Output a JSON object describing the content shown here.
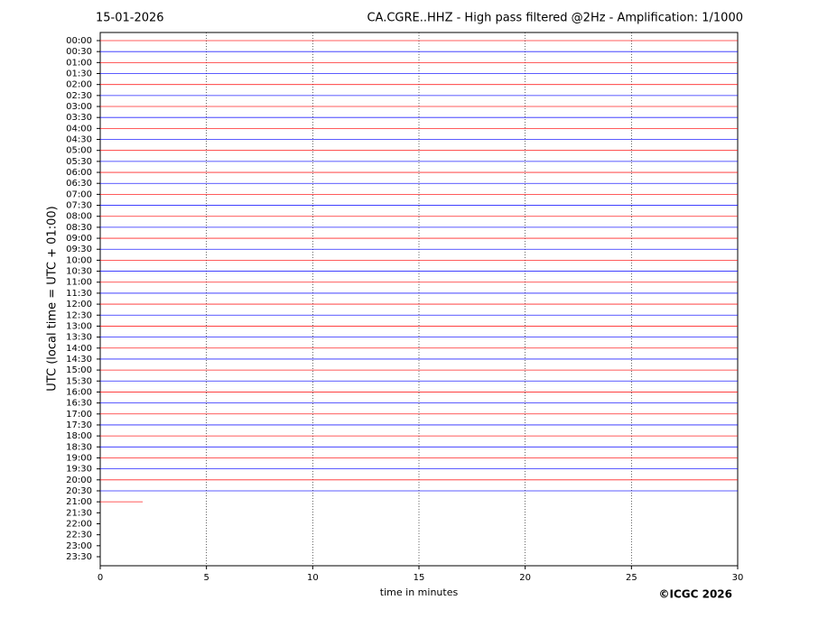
{
  "chart_data": {
    "type": "helicorder",
    "title_left": "15-01-2026",
    "title": "CA.CGRE..HHZ - High pass filtered @2Hz - Amplification: 1/1000",
    "y_label": "UTC (local time = UTC + 01:00)",
    "x_label": "time in minutes",
    "copyright": "©ICGC 2026",
    "categories": [
      "00:00",
      "00:30",
      "01:00",
      "01:30",
      "02:00",
      "02:30",
      "03:00",
      "03:30",
      "04:00",
      "04:30",
      "05:00",
      "05:30",
      "06:00",
      "06:30",
      "07:00",
      "07:30",
      "08:00",
      "08:30",
      "09:00",
      "09:30",
      "10:00",
      "10:30",
      "11:00",
      "11:30",
      "12:00",
      "12:30",
      "13:00",
      "13:30",
      "14:00",
      "14:30",
      "15:00",
      "15:30",
      "16:00",
      "16:30",
      "17:00",
      "17:30",
      "18:00",
      "18:30",
      "19:00",
      "19:30",
      "20:00",
      "20:30",
      "21:00",
      "21:30",
      "22:00",
      "22:30",
      "23:00",
      "23:30"
    ],
    "values": [
      30,
      30,
      30,
      30,
      30,
      30,
      30,
      30,
      30,
      30,
      30,
      30,
      30,
      30,
      30,
      30,
      30,
      30,
      30,
      30,
      30,
      30,
      30,
      30,
      30,
      30,
      30,
      30,
      30,
      30,
      30,
      30,
      30,
      30,
      30,
      30,
      30,
      30,
      30,
      30,
      30,
      30,
      2,
      null,
      null,
      null,
      null,
      null
    ],
    "colors": [
      "#ff0000",
      "#0000ff"
    ],
    "xlim": [
      0,
      30
    ],
    "xticks": [
      0,
      5,
      10,
      15,
      20,
      25,
      30
    ],
    "grid": true
  }
}
